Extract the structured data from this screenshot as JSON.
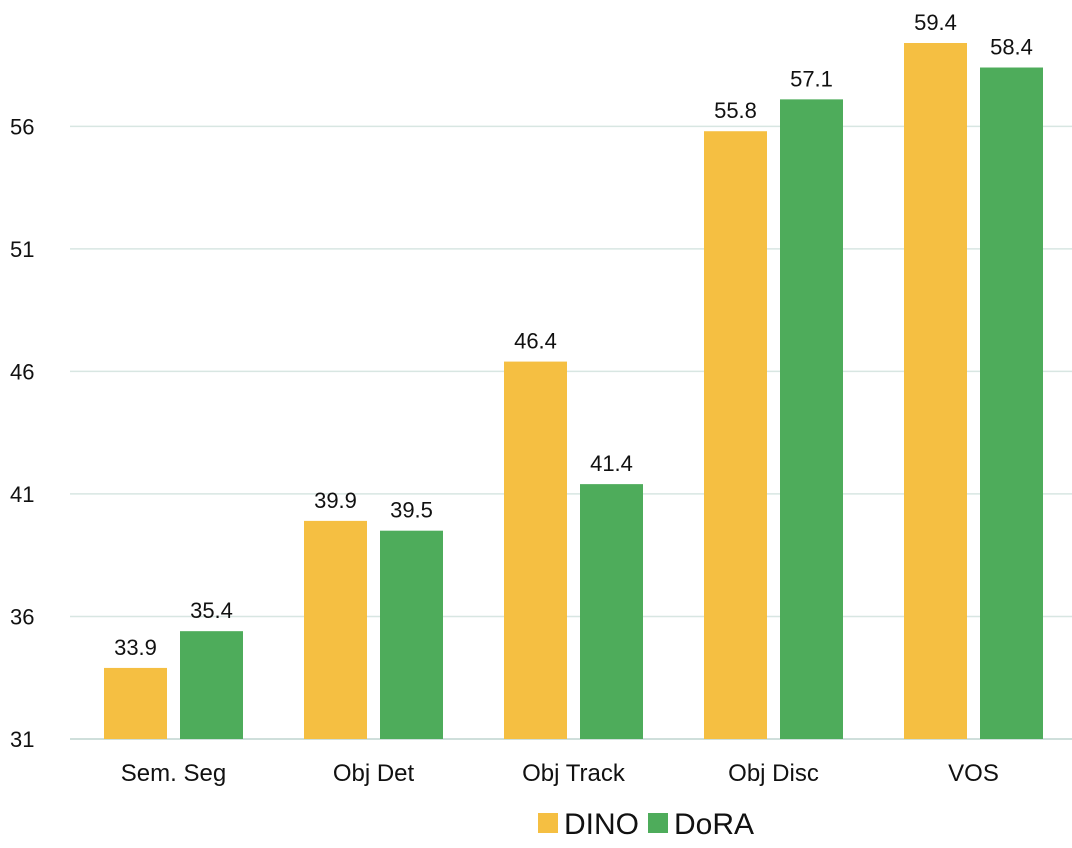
{
  "chart_data": {
    "type": "bar",
    "categories": [
      "Sem. Seg",
      "Obj Det",
      "Obj Track",
      "Obj Disc",
      "VOS"
    ],
    "series": [
      {
        "name": "DINO",
        "values": [
          33.9,
          39.9,
          46.4,
          55.8,
          59.4
        ],
        "color": "#F5BF42"
      },
      {
        "name": "DoRA",
        "values": [
          35.4,
          39.5,
          41.4,
          57.1,
          58.4
        ],
        "color": "#4EAC5B"
      }
    ],
    "yticks": [
      31,
      36,
      41,
      46,
      51,
      56
    ],
    "ylim": [
      31,
      59.4
    ],
    "grid": true,
    "legend": "bottom-center"
  }
}
